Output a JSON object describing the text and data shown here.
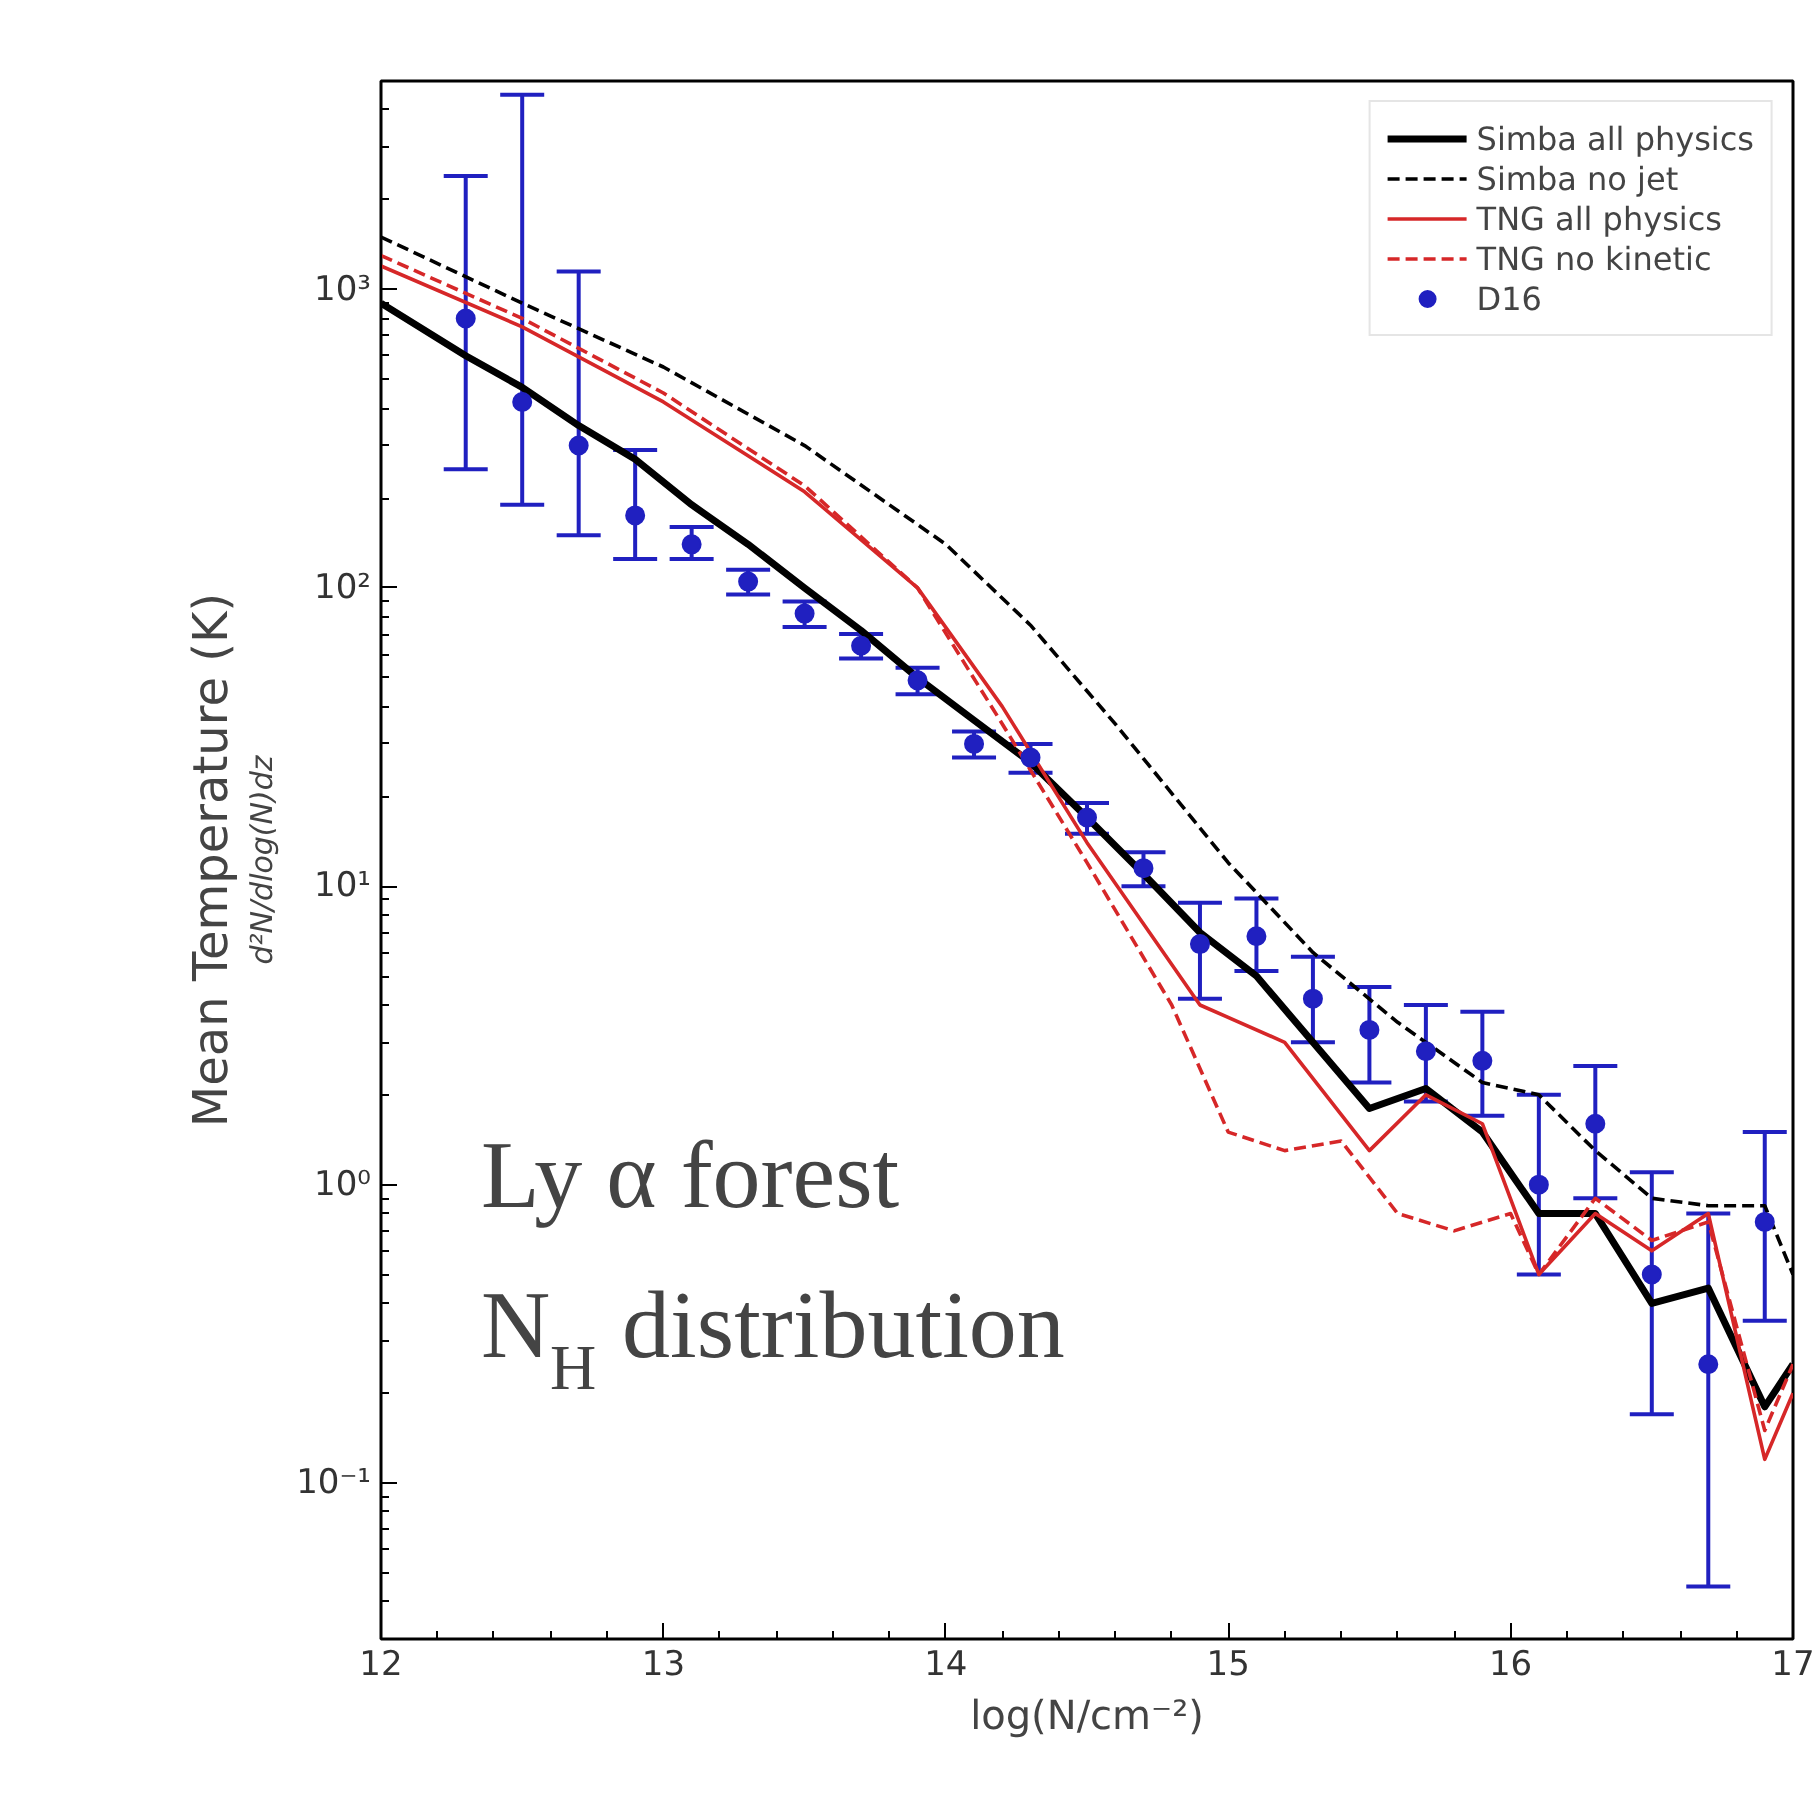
{
  "chart_data": {
    "type": "line",
    "xlabel": "log(N/cm⁻²)",
    "ylabel": "d²N/dlog(N)dz",
    "annotations": [
      "Mean Temperature (K)",
      "Ly α forest",
      "N$_{H}$ distribution"
    ],
    "xlim": [
      12,
      17
    ],
    "xticks": [
      12,
      13,
      14,
      15,
      16,
      17
    ],
    "ylim": [
      0.03,
      5000
    ],
    "yticks": [
      {
        "value": 0.1,
        "label": "10⁻¹"
      },
      {
        "value": 1,
        "label": "10⁰"
      },
      {
        "value": 10,
        "label": "10¹"
      },
      {
        "value": 100,
        "label": "10²"
      },
      {
        "value": 1000,
        "label": "10³"
      }
    ],
    "log": "y",
    "grid": false,
    "legend": "top right",
    "series": [
      {
        "name": "Simba all physics",
        "color": "#000000",
        "line_style": "solid",
        "x": [
          12.0,
          12.3,
          12.5,
          12.7,
          12.9,
          13.1,
          13.3,
          13.5,
          13.7,
          13.9,
          14.1,
          14.3,
          14.5,
          14.7,
          14.9,
          15.1,
          15.3,
          15.5,
          15.7,
          15.9,
          16.1,
          16.3,
          16.5,
          16.7,
          16.9,
          17.0
        ],
        "values": [
          900,
          600,
          470,
          350,
          270,
          190,
          140,
          100,
          72,
          50,
          36,
          26,
          17,
          11,
          7,
          5,
          3.0,
          1.8,
          2.1,
          1.5,
          0.8,
          0.8,
          0.4,
          0.45,
          0.18,
          0.25
        ]
      },
      {
        "name": "Simba no jet",
        "color": "#000000",
        "line_style": "dashed",
        "x": [
          12.0,
          12.5,
          13.0,
          13.5,
          14.0,
          14.3,
          14.6,
          15.0,
          15.3,
          15.6,
          15.9,
          16.1,
          16.3,
          16.5,
          16.7,
          16.9,
          17.0
        ],
        "values": [
          1500,
          900,
          550,
          300,
          140,
          75,
          35,
          12,
          6,
          3.5,
          2.2,
          2.0,
          1.3,
          0.9,
          0.85,
          0.85,
          0.5
        ]
      },
      {
        "name": "TNG all physics",
        "color": "#d62728",
        "line_style": "solid",
        "x": [
          12.0,
          12.5,
          13.0,
          13.5,
          13.9,
          14.2,
          14.5,
          14.9,
          15.2,
          15.5,
          15.7,
          15.9,
          16.1,
          16.3,
          16.5,
          16.7,
          16.9,
          17.0
        ],
        "values": [
          1200,
          750,
          420,
          210,
          100,
          40,
          14,
          4.0,
          3.0,
          1.3,
          2.0,
          1.6,
          0.5,
          0.8,
          0.6,
          0.8,
          0.12,
          0.2
        ]
      },
      {
        "name": "TNG no kinetic",
        "color": "#d62728",
        "line_style": "dashed",
        "x": [
          12.0,
          12.5,
          13.0,
          13.5,
          13.9,
          14.2,
          14.5,
          14.8,
          15.0,
          15.2,
          15.4,
          15.6,
          15.8,
          16.0,
          16.1,
          16.3,
          16.5,
          16.7,
          16.9,
          17.0
        ],
        "values": [
          1300,
          800,
          450,
          220,
          100,
          35,
          12,
          4,
          1.5,
          1.3,
          1.4,
          0.8,
          0.7,
          0.8,
          0.5,
          0.9,
          0.65,
          0.75,
          0.15,
          0.25
        ]
      },
      {
        "name": "D16",
        "type": "scatter",
        "marker": "circle",
        "color": "#2020c0",
        "x": [
          12.3,
          12.5,
          12.7,
          12.9,
          13.1,
          13.3,
          13.5,
          13.7,
          13.9,
          14.1,
          14.3,
          14.5,
          14.7,
          14.9,
          15.1,
          15.3,
          15.5,
          15.7,
          15.9,
          16.1,
          16.3,
          16.5,
          16.7,
          16.9
        ],
        "values": [
          800,
          420,
          300,
          175,
          140,
          105,
          82,
          64,
          49,
          30,
          27,
          17,
          11.5,
          6.4,
          6.8,
          4.2,
          3.3,
          2.8,
          2.6,
          1.0,
          1.6,
          0.5,
          0.25,
          0.75
        ],
        "errors": [
          [
            250,
            2400
          ],
          [
            190,
            4500
          ],
          [
            150,
            1150
          ],
          [
            125,
            290
          ],
          [
            125,
            160
          ],
          [
            95,
            115
          ],
          [
            74,
            90
          ],
          [
            58,
            70
          ],
          [
            44,
            54
          ],
          [
            27,
            33
          ],
          [
            24,
            30
          ],
          [
            15,
            19
          ],
          [
            10,
            13
          ],
          [
            4.2,
            8.8
          ],
          [
            5.2,
            9.1
          ],
          [
            3.0,
            5.8
          ],
          [
            2.2,
            4.6
          ],
          [
            1.9,
            4.0
          ],
          [
            1.7,
            3.8
          ],
          [
            0.5,
            2.0
          ],
          [
            0.9,
            2.5
          ],
          [
            0.17,
            1.1
          ],
          [
            0.045,
            0.8
          ],
          [
            0.35,
            1.5
          ]
        ]
      }
    ]
  }
}
